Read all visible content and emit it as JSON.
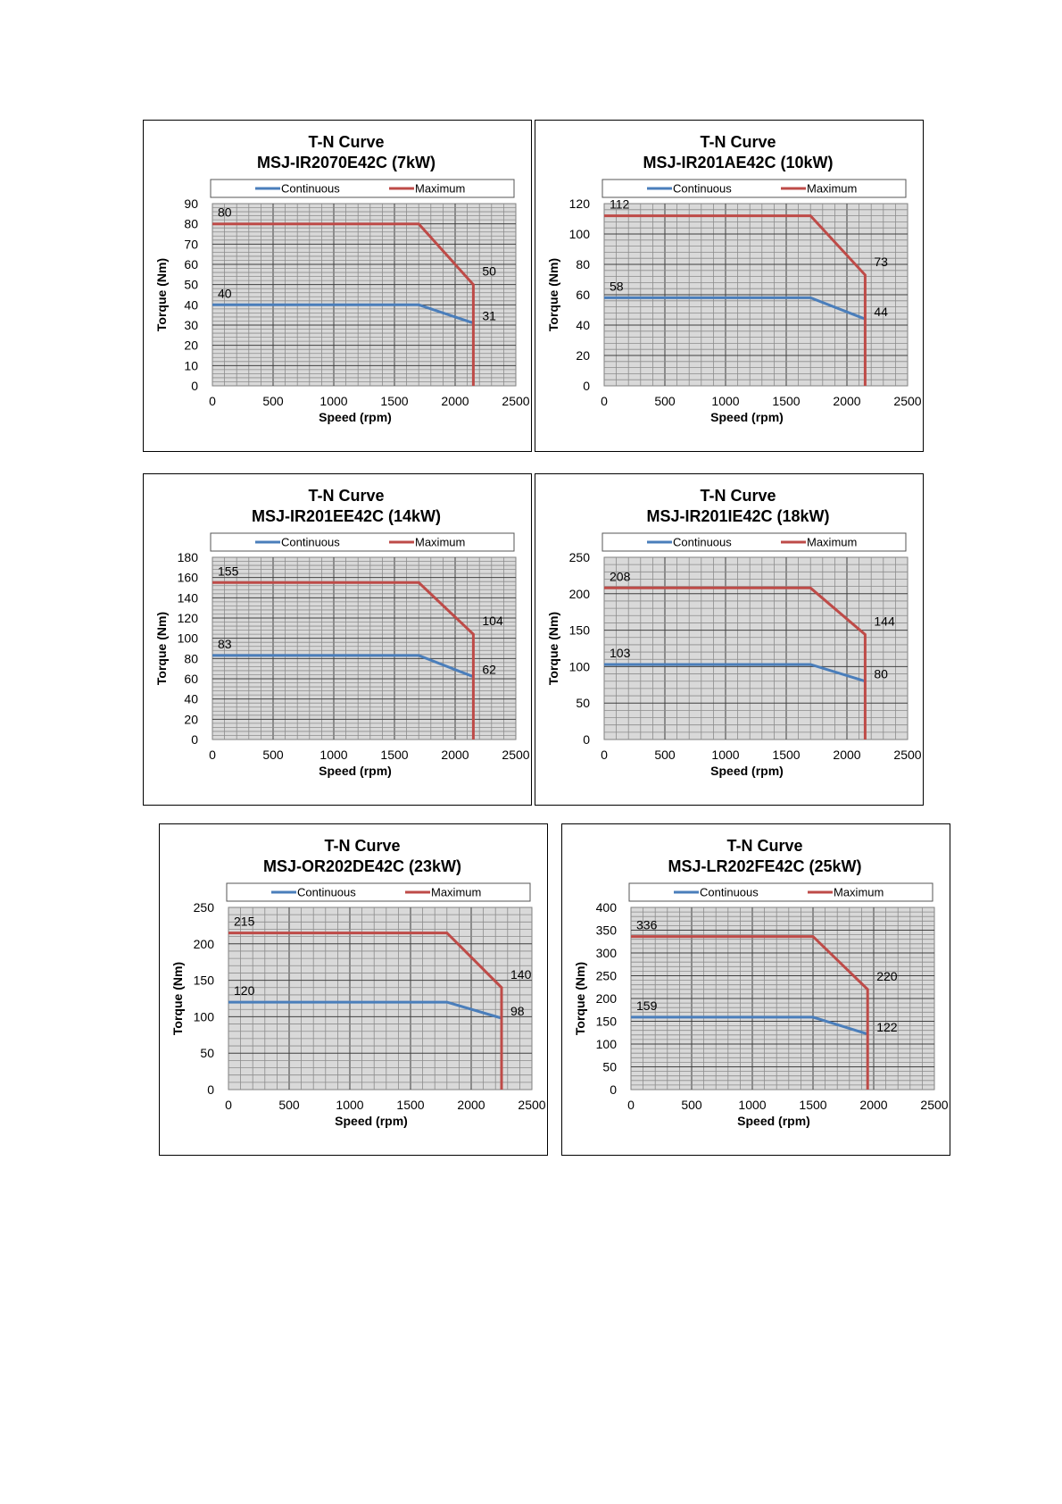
{
  "colors": {
    "continuous": "#4a7ebb",
    "maximum": "#be4b48",
    "plot_bg": "#d9d9d9",
    "grid": "#7f7f7f"
  },
  "chart_data": [
    {
      "type": "line",
      "title": "T-N Curve",
      "subtitle": "MSJ-IR2070E42C  (7kW)",
      "xlabel": "Speed (rpm)",
      "ylabel": "Torque (Nm)",
      "xlim": [
        0,
        2500
      ],
      "ylim": [
        0,
        90
      ],
      "xticks": [
        0,
        500,
        1000,
        1500,
        2000,
        2500
      ],
      "yticks": [
        0,
        10,
        20,
        30,
        40,
        50,
        60,
        70,
        80,
        90
      ],
      "grid": true,
      "legend": "top",
      "series": [
        {
          "name": "Continuous",
          "x": [
            0,
            1700,
            2150
          ],
          "y": [
            40,
            40,
            31
          ],
          "labels": [
            {
              "text": "40",
              "x": 0,
              "y": 40
            },
            {
              "text": "31",
              "x": 2150,
              "y": 31
            }
          ]
        },
        {
          "name": "Maximum",
          "x": [
            0,
            1700,
            2150,
            2150
          ],
          "y": [
            80,
            80,
            50,
            0
          ],
          "labels": [
            {
              "text": "80",
              "x": 0,
              "y": 80
            },
            {
              "text": "50",
              "x": 2150,
              "y": 50
            }
          ]
        }
      ]
    },
    {
      "type": "line",
      "title": "T-N Curve",
      "subtitle": "MSJ-IR201AE42C  (10kW)",
      "xlabel": "Speed (rpm)",
      "ylabel": "Torque (Nm)",
      "xlim": [
        0,
        2500
      ],
      "ylim": [
        0,
        120
      ],
      "xticks": [
        0,
        500,
        1000,
        1500,
        2000,
        2500
      ],
      "yticks": [
        0,
        20,
        40,
        60,
        80,
        100,
        120
      ],
      "grid": true,
      "legend": "top",
      "series": [
        {
          "name": "Continuous",
          "x": [
            0,
            1700,
            2150
          ],
          "y": [
            58,
            58,
            44
          ],
          "labels": [
            {
              "text": "58",
              "x": 0,
              "y": 58
            },
            {
              "text": "44",
              "x": 2150,
              "y": 44
            }
          ]
        },
        {
          "name": "Maximum",
          "x": [
            0,
            1700,
            2150,
            2150
          ],
          "y": [
            112,
            112,
            73,
            0
          ],
          "labels": [
            {
              "text": "112",
              "x": 0,
              "y": 112
            },
            {
              "text": "73",
              "x": 2150,
              "y": 73
            }
          ]
        }
      ]
    },
    {
      "type": "line",
      "title": "T-N Curve",
      "subtitle": "MSJ-IR201EE42C  (14kW)",
      "xlabel": "Speed (rpm)",
      "ylabel": "Torque (Nm)",
      "xlim": [
        0,
        2500
      ],
      "ylim": [
        0,
        180
      ],
      "xticks": [
        0,
        500,
        1000,
        1500,
        2000,
        2500
      ],
      "yticks": [
        0,
        20,
        40,
        60,
        80,
        100,
        120,
        140,
        160,
        180
      ],
      "grid": true,
      "legend": "top",
      "series": [
        {
          "name": "Continuous",
          "x": [
            0,
            1700,
            2150
          ],
          "y": [
            83,
            83,
            62
          ],
          "labels": [
            {
              "text": "83",
              "x": 0,
              "y": 83
            },
            {
              "text": "62",
              "x": 2150,
              "y": 62
            }
          ]
        },
        {
          "name": "Maximum",
          "x": [
            0,
            1700,
            2150,
            2150
          ],
          "y": [
            155,
            155,
            104,
            0
          ],
          "labels": [
            {
              "text": "155",
              "x": 0,
              "y": 155
            },
            {
              "text": "104",
              "x": 2150,
              "y": 104
            }
          ]
        }
      ]
    },
    {
      "type": "line",
      "title": "T-N Curve",
      "subtitle": "MSJ-IR201IE42C  (18kW)",
      "xlabel": "Speed (rpm)",
      "ylabel": "Torque (Nm)",
      "xlim": [
        0,
        2500
      ],
      "ylim": [
        0,
        250
      ],
      "xticks": [
        0,
        500,
        1000,
        1500,
        2000,
        2500
      ],
      "yticks": [
        0,
        50,
        100,
        150,
        200,
        250
      ],
      "grid": true,
      "legend": "top",
      "series": [
        {
          "name": "Continuous",
          "x": [
            0,
            1700,
            2150
          ],
          "y": [
            103,
            103,
            80
          ],
          "labels": [
            {
              "text": "103",
              "x": 0,
              "y": 103
            },
            {
              "text": "80",
              "x": 2150,
              "y": 80
            }
          ]
        },
        {
          "name": "Maximum",
          "x": [
            0,
            1700,
            2150,
            2150
          ],
          "y": [
            208,
            208,
            144,
            0
          ],
          "labels": [
            {
              "text": "208",
              "x": 0,
              "y": 208
            },
            {
              "text": "144",
              "x": 2150,
              "y": 144
            }
          ]
        }
      ]
    },
    {
      "type": "line",
      "title": "T-N Curve",
      "subtitle": "MSJ-OR202DE42C  (23kW)",
      "xlabel": "Speed (rpm)",
      "ylabel": "Torque (Nm)",
      "xlim": [
        0,
        2500
      ],
      "ylim": [
        0,
        250
      ],
      "xticks": [
        0,
        500,
        1000,
        1500,
        2000,
        2500
      ],
      "yticks": [
        0,
        50,
        100,
        150,
        200,
        250
      ],
      "grid": true,
      "legend": "top",
      "series": [
        {
          "name": "Continuous",
          "x": [
            0,
            1800,
            2250
          ],
          "y": [
            120,
            120,
            98
          ],
          "labels": [
            {
              "text": "120",
              "x": 0,
              "y": 120
            },
            {
              "text": "98",
              "x": 2250,
              "y": 98
            }
          ]
        },
        {
          "name": "Maximum",
          "x": [
            0,
            1800,
            2250,
            2250
          ],
          "y": [
            215,
            215,
            140,
            0
          ],
          "labels": [
            {
              "text": "215",
              "x": 0,
              "y": 215
            },
            {
              "text": "140",
              "x": 2250,
              "y": 140
            }
          ]
        }
      ]
    },
    {
      "type": "line",
      "title": "T-N Curve",
      "subtitle": "MSJ-LR202FE42C  (25kW)",
      "xlabel": "Speed (rpm)",
      "ylabel": "Torque (Nm)",
      "xlim": [
        0,
        2500
      ],
      "ylim": [
        0,
        400
      ],
      "xticks": [
        0,
        500,
        1000,
        1500,
        2000,
        2500
      ],
      "yticks": [
        0,
        50,
        100,
        150,
        200,
        250,
        300,
        350,
        400
      ],
      "grid": true,
      "legend": "top",
      "series": [
        {
          "name": "Continuous",
          "x": [
            0,
            1500,
            1950
          ],
          "y": [
            159,
            159,
            122
          ],
          "labels": [
            {
              "text": "159",
              "x": 0,
              "y": 159
            },
            {
              "text": "122",
              "x": 1950,
              "y": 122
            }
          ]
        },
        {
          "name": "Maximum",
          "x": [
            0,
            1500,
            1950,
            1950
          ],
          "y": [
            336,
            336,
            220,
            0
          ],
          "labels": [
            {
              "text": "336",
              "x": 0,
              "y": 336
            },
            {
              "text": "220",
              "x": 1950,
              "y": 220
            }
          ]
        }
      ]
    }
  ]
}
